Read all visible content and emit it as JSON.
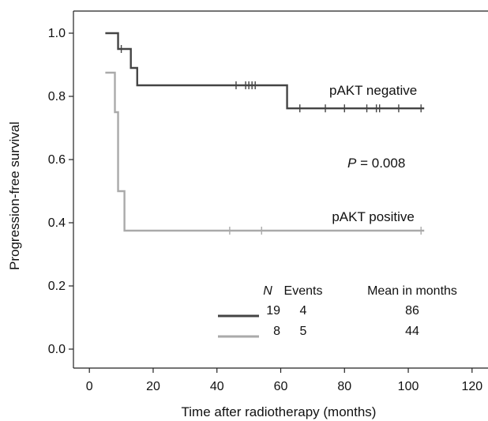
{
  "chart_data": {
    "type": "line",
    "subtype": "kaplan-meier step",
    "xlabel": "Time after radiotherapy (months)",
    "ylabel": "Progression-free survival",
    "xlim": [
      -5,
      125
    ],
    "ylim": [
      -0.06,
      1.07
    ],
    "x_ticks": [
      0,
      20,
      40,
      60,
      80,
      100,
      120
    ],
    "y_ticks": [
      0.0,
      0.2,
      0.4,
      0.6,
      0.8,
      1.0
    ],
    "x_tick_labels": [
      "0",
      "20",
      "40",
      "60",
      "80",
      "100",
      "120"
    ],
    "y_tick_labels": [
      "0.0",
      "0.2",
      "0.4",
      "0.6",
      "0.8",
      "1.0"
    ],
    "grid": false,
    "series": [
      {
        "name": "pAKT negative",
        "color": "#444444",
        "steps": [
          [
            5,
            1.0
          ],
          [
            9,
            0.95
          ],
          [
            13,
            0.89
          ],
          [
            15,
            0.835
          ],
          [
            62,
            0.762
          ],
          [
            105,
            0.762
          ]
        ],
        "censors": [
          [
            10,
            0.95
          ],
          [
            46,
            0.835
          ],
          [
            49,
            0.835
          ],
          [
            50,
            0.835
          ],
          [
            51,
            0.835
          ],
          [
            52,
            0.835
          ],
          [
            66,
            0.762
          ],
          [
            74,
            0.762
          ],
          [
            80,
            0.762
          ],
          [
            87,
            0.762
          ],
          [
            90,
            0.762
          ],
          [
            91,
            0.762
          ],
          [
            97,
            0.762
          ],
          [
            104,
            0.762
          ]
        ]
      },
      {
        "name": "pAKT positive",
        "color": "#aaaaaa",
        "steps": [
          [
            5,
            0.875
          ],
          [
            8,
            0.75
          ],
          [
            9,
            0.5
          ],
          [
            11,
            0.375
          ],
          [
            105,
            0.375
          ]
        ],
        "censors": [
          [
            44,
            0.375
          ],
          [
            54,
            0.375
          ],
          [
            104,
            0.375
          ]
        ]
      }
    ],
    "annotations": [
      {
        "text": "pAKT negative",
        "x": 89,
        "y": 0.805
      },
      {
        "text": "pAKT positive",
        "x": 89,
        "y": 0.405
      },
      {
        "prefix": "P",
        "text": " = 0.008",
        "x": 90,
        "y": 0.575
      }
    ],
    "legend": {
      "placement": "bottom-right",
      "headers": {
        "n": "N",
        "events": "Events",
        "mean": "Mean in months"
      },
      "rows": [
        {
          "n": "19",
          "events": "4",
          "mean": "86",
          "color": "#444444"
        },
        {
          "n": "8",
          "events": "5",
          "mean": "44",
          "color": "#aaaaaa"
        }
      ]
    }
  }
}
